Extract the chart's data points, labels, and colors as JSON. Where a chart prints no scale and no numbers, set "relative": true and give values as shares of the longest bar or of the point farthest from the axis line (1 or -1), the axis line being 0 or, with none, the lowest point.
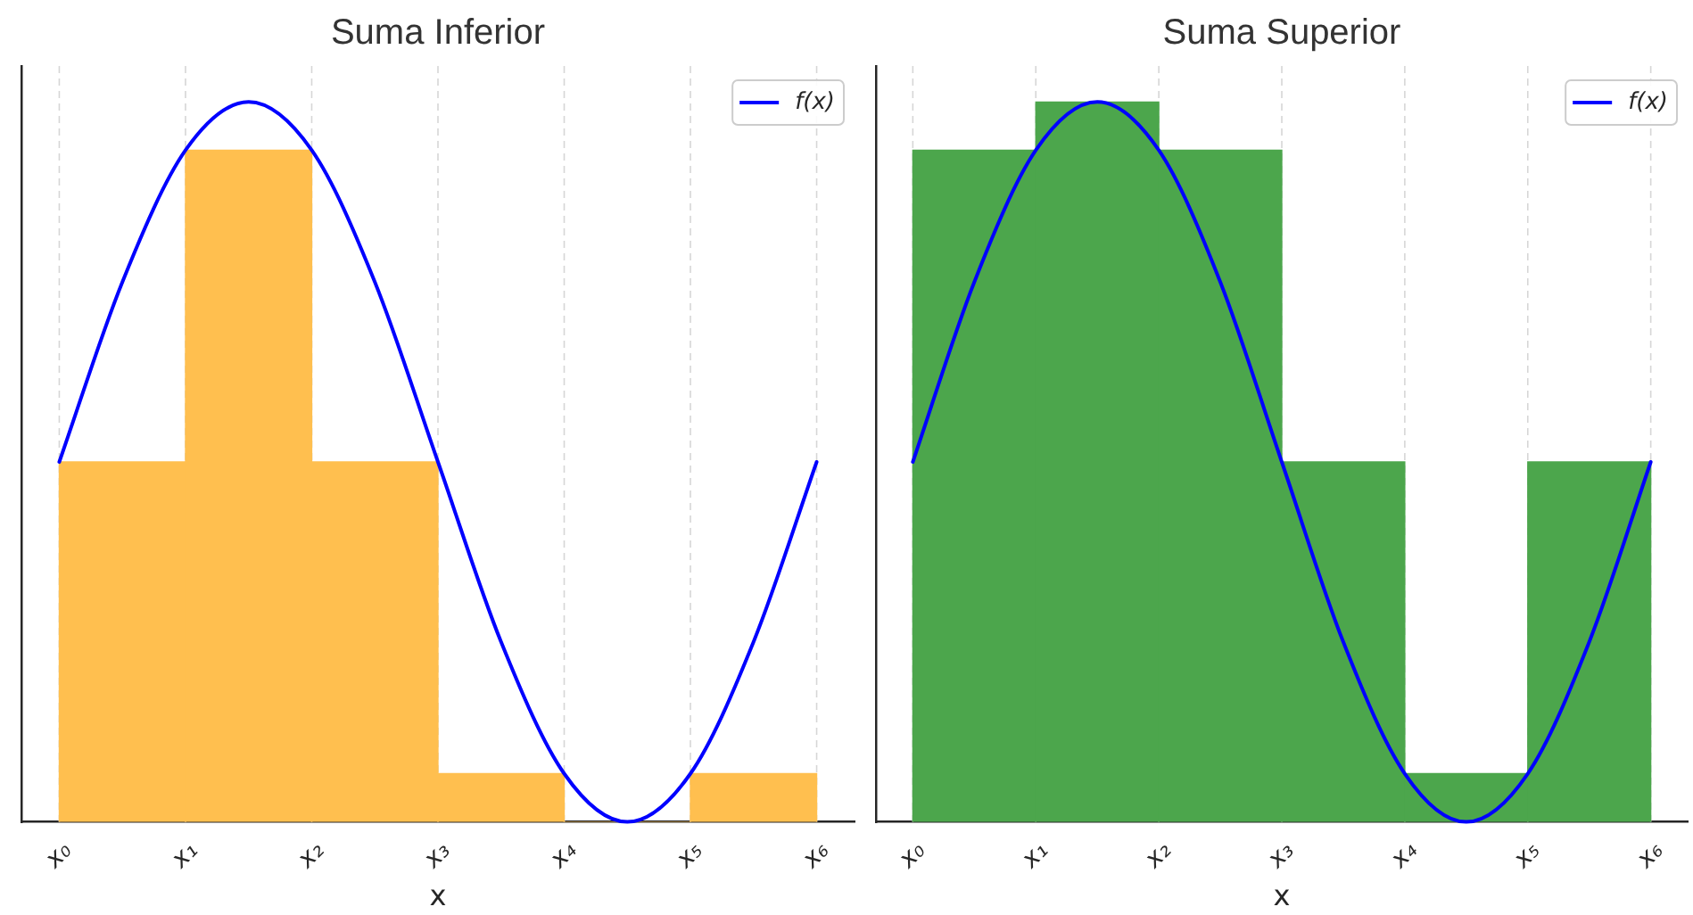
{
  "chart_data": [
    {
      "type": "bar",
      "title": "Suma Inferior",
      "xlabel": "x",
      "relative": true,
      "grid": "x",
      "legend": "top right",
      "categories": [
        "x₀",
        null,
        "x₁",
        null,
        "x₂",
        null,
        "x₃",
        null,
        "x₄",
        null,
        "x₅",
        null,
        "x₆"
      ],
      "series": [
        {
          "color": "#ffbf4f",
          "values": [
            null,
            0.5,
            null,
            0.933,
            null,
            0.5,
            null,
            0.067,
            null,
            0,
            null,
            0.067,
            null
          ]
        },
        {
          "type": "line",
          "name": "f(x)",
          "color": "#0000ff",
          "values": [
            0.5,
            0.75,
            0.933,
            1,
            0.933,
            0.75,
            0.5,
            0.25,
            0.067,
            0,
            0.067,
            0.25,
            0.5
          ]
        }
      ]
    },
    {
      "type": "bar",
      "title": "Suma Superior",
      "xlabel": "x",
      "relative": true,
      "grid": "x",
      "legend": "top right",
      "categories": [
        "x₀",
        null,
        "x₁",
        null,
        "x₂",
        null,
        "x₃",
        null,
        "x₄",
        null,
        "x₅",
        null,
        "x₆"
      ],
      "series": [
        {
          "color": "#4ca64c",
          "values": [
            null,
            0.933,
            null,
            1,
            null,
            0.933,
            null,
            0.5,
            null,
            0.067,
            null,
            0.5,
            null
          ]
        },
        {
          "type": "line",
          "name": "f(x)",
          "color": "#0000ff",
          "values": [
            0.5,
            0.75,
            0.933,
            1,
            0.933,
            0.75,
            0.5,
            0.25,
            0.067,
            0,
            0.067,
            0.25,
            0.5
          ]
        }
      ]
    }
  ]
}
